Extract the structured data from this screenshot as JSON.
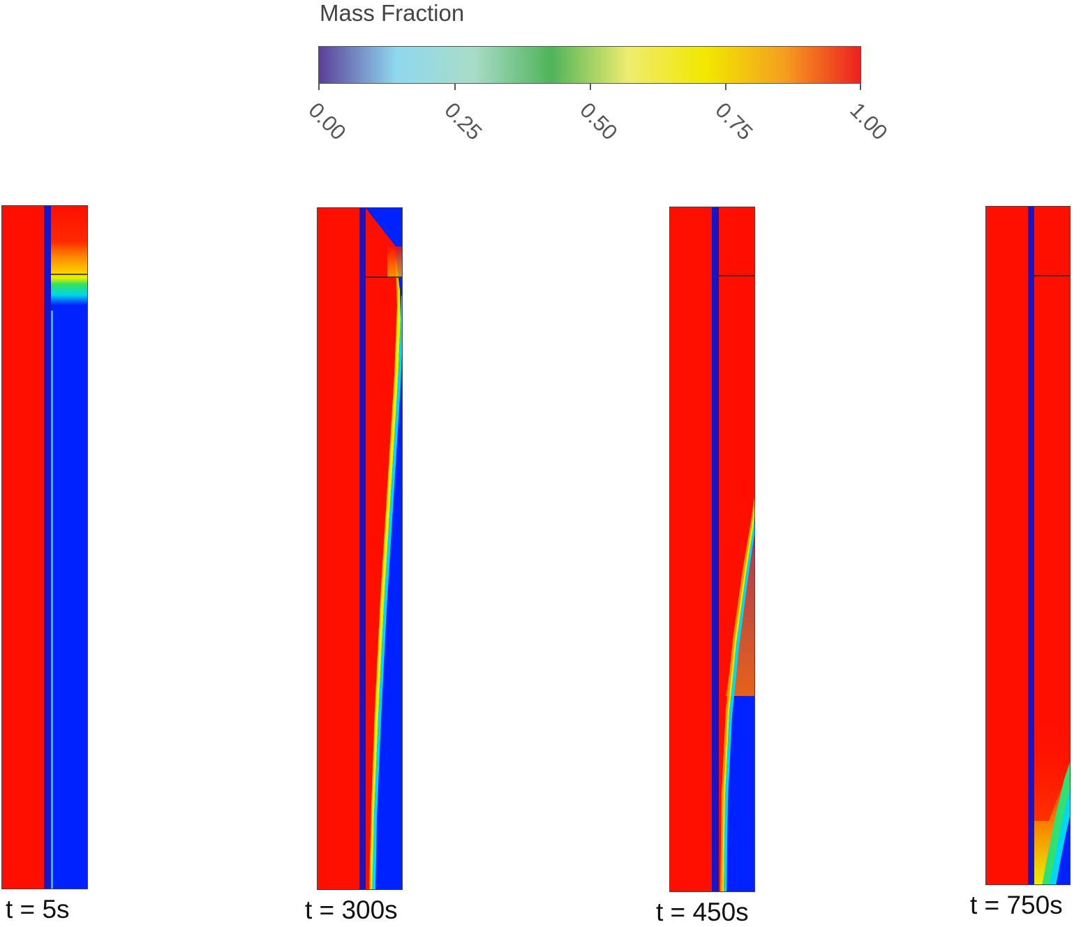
{
  "colorbar": {
    "title": "Mass Fraction",
    "ticks": [
      "0.00",
      "0.25",
      "0.50",
      "0.75",
      "1.00"
    ],
    "range": [
      0,
      1
    ],
    "colormap": [
      "#5b3f9a",
      "#8fd8ee",
      "#a8dcc8",
      "#4fb45a",
      "#eeec6e",
      "#f2e800",
      "#f5a020",
      "#ee2020"
    ]
  },
  "panels": [
    {
      "label": "t = 5s"
    },
    {
      "label": "t = 300s"
    },
    {
      "label": "t = 450s"
    },
    {
      "label": "t = 750s"
    }
  ],
  "colors": {
    "red": "#ff0f00",
    "blue": "#0022ff",
    "membrane": "#1616c8"
  }
}
